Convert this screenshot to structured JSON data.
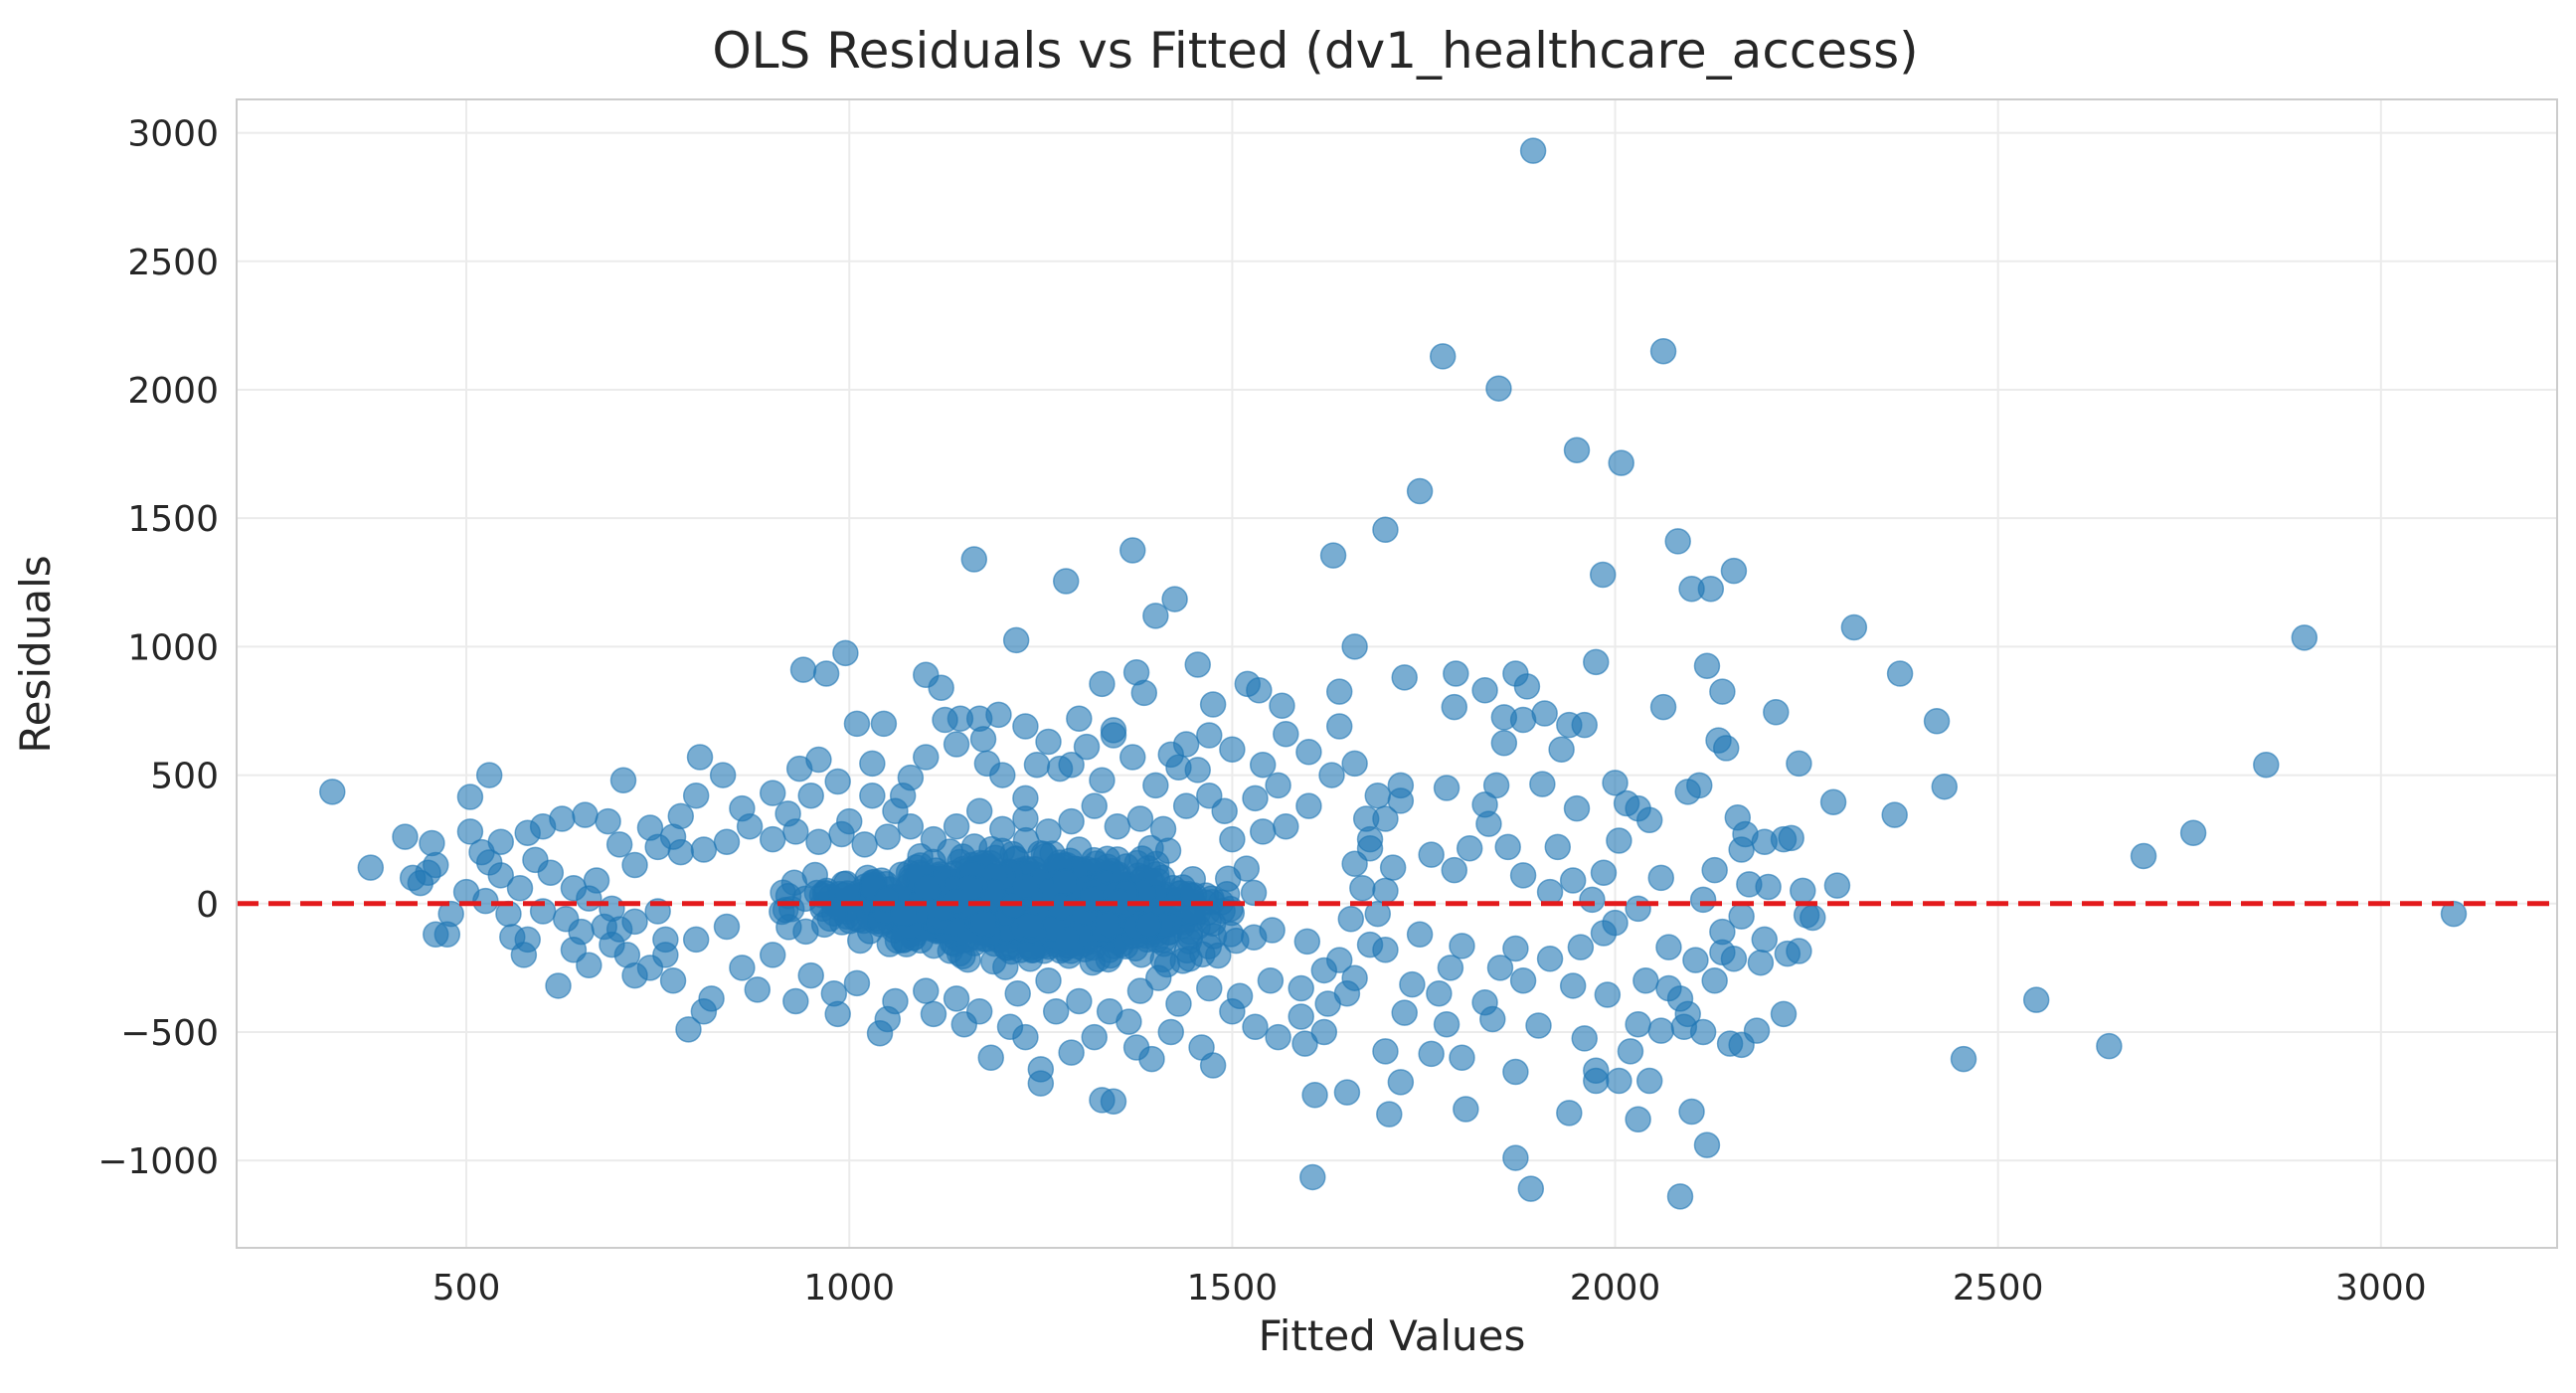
{
  "chart_data": {
    "type": "scatter",
    "title": "OLS Residuals vs Fitted (dv1_healthcare_access)",
    "xlabel": "Fitted Values",
    "ylabel": "Residuals",
    "xlim": [
      200,
      3230
    ],
    "ylim": [
      -1340,
      3130
    ],
    "xticks": [
      500,
      1000,
      1500,
      2000,
      2500,
      3000
    ],
    "xtick_labels": [
      "500",
      "1000",
      "1500",
      "2000",
      "2500",
      "3000"
    ],
    "yticks": [
      -1000,
      -500,
      0,
      500,
      1000,
      1500,
      2000,
      2500,
      3000
    ],
    "ytick_labels": [
      "−1000",
      "−500",
      "0",
      "500",
      "1000",
      "1500",
      "2000",
      "2500",
      "3000"
    ],
    "grid": true,
    "reference_line": {
      "y": 0,
      "style": "dashed",
      "color": "#e31a1c"
    },
    "point_color": "#1f77b4",
    "point_opacity": 0.6,
    "dense_cluster": {
      "x_range": [
        780,
        1680
      ],
      "y_range": [
        -350,
        330
      ],
      "note_count": 1400
    },
    "points": [
      [
        1893,
        2930
      ],
      [
        1775,
        2130
      ],
      [
        2063,
        2150
      ],
      [
        1848,
        2005
      ],
      [
        1950,
        1765
      ],
      [
        2008,
        1715
      ],
      [
        1745,
        1605
      ],
      [
        1700,
        1455
      ],
      [
        2082,
        1410
      ],
      [
        1632,
        1355
      ],
      [
        1163,
        1340
      ],
      [
        1370,
        1375
      ],
      [
        1283,
        1255
      ],
      [
        1984,
        1280
      ],
      [
        2155,
        1295
      ],
      [
        2100,
        1225
      ],
      [
        2125,
        1225
      ],
      [
        1425,
        1185
      ],
      [
        1400,
        1120
      ],
      [
        1218,
        1025
      ],
      [
        995,
        975
      ],
      [
        1660,
        1000
      ],
      [
        2312,
        1075
      ],
      [
        2900,
        1035
      ],
      [
        1455,
        930
      ],
      [
        1640,
        825
      ],
      [
        2372,
        895
      ],
      [
        2120,
        925
      ],
      [
        2140,
        825
      ],
      [
        1830,
        830
      ],
      [
        1870,
        895
      ],
      [
        1885,
        845
      ],
      [
        1940,
        695
      ],
      [
        1960,
        695
      ],
      [
        1792,
        895
      ],
      [
        1725,
        880
      ],
      [
        940,
        910
      ],
      [
        970,
        895
      ],
      [
        1100,
        890
      ],
      [
        1120,
        840
      ],
      [
        1375,
        900
      ],
      [
        1520,
        855
      ],
      [
        1535,
        830
      ],
      [
        1565,
        770
      ],
      [
        1475,
        775
      ],
      [
        1330,
        855
      ],
      [
        1345,
        675
      ],
      [
        1300,
        720
      ],
      [
        2420,
        710
      ],
      [
        2210,
        745
      ],
      [
        2063,
        765
      ],
      [
        1908,
        740
      ],
      [
        1975,
        940
      ],
      [
        1855,
        625
      ],
      [
        2850,
        540
      ],
      [
        2240,
        545
      ],
      [
        2430,
        455
      ],
      [
        2365,
        345
      ],
      [
        2285,
        395
      ],
      [
        2755,
        275
      ],
      [
        2690,
        185
      ],
      [
        2290,
        70
      ],
      [
        3095,
        -40
      ],
      [
        2258,
        -55
      ],
      [
        2225,
        -195
      ],
      [
        2220,
        -430
      ],
      [
        2550,
        -375
      ],
      [
        2645,
        -555
      ],
      [
        2455,
        -605
      ],
      [
        2120,
        -940
      ],
      [
        2085,
        -1140
      ],
      [
        1890,
        -1110
      ],
      [
        1870,
        -990
      ],
      [
        1605,
        -1065
      ],
      [
        1705,
        -820
      ],
      [
        1805,
        -800
      ],
      [
        2100,
        -810
      ],
      [
        2030,
        -840
      ],
      [
        1975,
        -690
      ],
      [
        2005,
        -690
      ],
      [
        2045,
        -690
      ],
      [
        1940,
        -815
      ],
      [
        1720,
        -695
      ],
      [
        1650,
        -735
      ],
      [
        1608,
        -745
      ],
      [
        1330,
        -765
      ],
      [
        1345,
        -770
      ],
      [
        1250,
        -700
      ],
      [
        1250,
        -645
      ],
      [
        1230,
        -520
      ],
      [
        1475,
        -630
      ],
      [
        1595,
        -545
      ],
      [
        1700,
        -575
      ],
      [
        1760,
        -585
      ],
      [
        1870,
        -655
      ],
      [
        1975,
        -650
      ],
      [
        2020,
        -575
      ],
      [
        2150,
        -545
      ],
      [
        2165,
        -550
      ],
      [
        2185,
        -495
      ],
      [
        2060,
        -495
      ],
      [
        2115,
        -500
      ],
      [
        2130,
        -300
      ],
      [
        2155,
        -215
      ],
      [
        2190,
        -230
      ],
      [
        2240,
        -185
      ],
      [
        2140,
        -190
      ],
      [
        2105,
        -220
      ],
      [
        2085,
        -370
      ],
      [
        2070,
        -330
      ],
      [
        2095,
        -430
      ],
      [
        2090,
        -480
      ],
      [
        1990,
        -355
      ],
      [
        1945,
        -320
      ],
      [
        1900,
        -475
      ],
      [
        1830,
        -385
      ],
      [
        1780,
        -470
      ],
      [
        1800,
        -600
      ],
      [
        1840,
        -450
      ],
      [
        1960,
        -525
      ],
      [
        2030,
        -470
      ],
      [
        2040,
        -300
      ],
      [
        2070,
        -170
      ],
      [
        1985,
        -115
      ],
      [
        1915,
        -215
      ],
      [
        1880,
        -300
      ],
      [
        1785,
        -250
      ],
      [
        1770,
        -350
      ],
      [
        1725,
        -425
      ],
      [
        1735,
        -315
      ],
      [
        1700,
        -180
      ],
      [
        1745,
        -120
      ],
      [
        1800,
        -165
      ],
      [
        1850,
        -250
      ],
      [
        1870,
        -175
      ],
      [
        1955,
        -170
      ],
      [
        2000,
        -75
      ],
      [
        2030,
        -20
      ],
      [
        2060,
        100
      ],
      [
        2045,
        325
      ],
      [
        2000,
        470
      ],
      [
        2015,
        390
      ],
      [
        2030,
        370
      ],
      [
        2005,
        245
      ],
      [
        1985,
        120
      ],
      [
        1970,
        15
      ],
      [
        2095,
        435
      ],
      [
        2110,
        460
      ],
      [
        2135,
        635
      ],
      [
        2145,
        605
      ],
      [
        2160,
        335
      ],
      [
        2165,
        210
      ],
      [
        2170,
        270
      ],
      [
        2195,
        240
      ],
      [
        2175,
        75
      ],
      [
        2165,
        -50
      ],
      [
        2200,
        65
      ],
      [
        2220,
        250
      ],
      [
        2130,
        130
      ],
      [
        2115,
        15
      ],
      [
        2140,
        -110
      ],
      [
        2195,
        -140
      ],
      [
        2250,
        -45
      ],
      [
        2245,
        50
      ],
      [
        2230,
        255
      ],
      [
        1950,
        370
      ],
      [
        1925,
        220
      ],
      [
        1945,
        90
      ],
      [
        1915,
        45
      ],
      [
        1880,
        110
      ],
      [
        1860,
        220
      ],
      [
        1835,
        310
      ],
      [
        1830,
        385
      ],
      [
        1845,
        460
      ],
      [
        1810,
        215
      ],
      [
        1790,
        130
      ],
      [
        1760,
        190
      ],
      [
        1720,
        400
      ],
      [
        1720,
        460
      ],
      [
        1780,
        450
      ],
      [
        1790,
        765
      ],
      [
        1855,
        725
      ],
      [
        1880,
        715
      ],
      [
        1930,
        600
      ],
      [
        1905,
        465
      ],
      [
        1690,
        420
      ],
      [
        1675,
        330
      ],
      [
        1680,
        215
      ],
      [
        1660,
        155
      ],
      [
        1670,
        60
      ],
      [
        1655,
        -60
      ],
      [
        1640,
        -220
      ],
      [
        1660,
        -290
      ],
      [
        1625,
        -390
      ],
      [
        1620,
        -500
      ],
      [
        1590,
        -440
      ],
      [
        1560,
        -520
      ],
      [
        1530,
        -480
      ],
      [
        1500,
        -420
      ],
      [
        1460,
        -560
      ],
      [
        1420,
        -500
      ],
      [
        1395,
        -605
      ],
      [
        1375,
        -560
      ],
      [
        1365,
        -460
      ],
      [
        1320,
        -520
      ],
      [
        1290,
        -580
      ],
      [
        1270,
        -420
      ],
      [
        1210,
        -480
      ],
      [
        1185,
        -600
      ],
      [
        1150,
        -470
      ],
      [
        1110,
        -430
      ],
      [
        1040,
        -505
      ],
      [
        1050,
        -450
      ],
      [
        985,
        -430
      ],
      [
        930,
        -380
      ],
      [
        880,
        -335
      ],
      [
        820,
        -370
      ],
      [
        790,
        -490
      ],
      [
        810,
        -420
      ],
      [
        770,
        -300
      ],
      [
        740,
        -250
      ],
      [
        710,
        -200
      ],
      [
        690,
        -160
      ],
      [
        650,
        -110
      ],
      [
        620,
        -320
      ],
      [
        580,
        -140
      ],
      [
        575,
        -200
      ],
      [
        560,
        -130
      ],
      [
        555,
        -40
      ],
      [
        525,
        10
      ],
      [
        500,
        45
      ],
      [
        480,
        -40
      ],
      [
        475,
        -120
      ],
      [
        460,
        -120
      ],
      [
        440,
        80
      ],
      [
        450,
        120
      ],
      [
        460,
        150
      ],
      [
        455,
        235
      ],
      [
        420,
        260
      ],
      [
        430,
        100
      ],
      [
        375,
        140
      ],
      [
        325,
        435
      ],
      [
        505,
        415
      ],
      [
        530,
        500
      ],
      [
        505,
        280
      ],
      [
        520,
        200
      ],
      [
        545,
        240
      ],
      [
        580,
        275
      ],
      [
        600,
        300
      ],
      [
        625,
        330
      ],
      [
        655,
        345
      ],
      [
        685,
        320
      ],
      [
        705,
        480
      ],
      [
        740,
        295
      ],
      [
        770,
        260
      ],
      [
        780,
        340
      ],
      [
        800,
        420
      ],
      [
        805,
        570
      ],
      [
        835,
        500
      ],
      [
        860,
        370
      ],
      [
        900,
        430
      ],
      [
        935,
        525
      ],
      [
        960,
        560
      ],
      [
        985,
        475
      ],
      [
        1010,
        700
      ],
      [
        1030,
        545
      ],
      [
        1045,
        700
      ],
      [
        1070,
        420
      ],
      [
        1100,
        570
      ],
      [
        1125,
        715
      ],
      [
        1145,
        720
      ],
      [
        1170,
        720
      ],
      [
        1195,
        735
      ],
      [
        1175,
        640
      ],
      [
        1200,
        500
      ],
      [
        1230,
        690
      ],
      [
        1245,
        540
      ],
      [
        1275,
        525
      ],
      [
        1290,
        540
      ],
      [
        1310,
        610
      ],
      [
        1345,
        655
      ],
      [
        1385,
        820
      ],
      [
        1400,
        460
      ],
      [
        1430,
        530
      ],
      [
        1440,
        620
      ],
      [
        1470,
        655
      ],
      [
        1500,
        600
      ],
      [
        1540,
        540
      ],
      [
        1570,
        660
      ],
      [
        1600,
        590
      ],
      [
        1630,
        500
      ],
      [
        1640,
        690
      ],
      [
        1660,
        545
      ],
      [
        1560,
        460
      ],
      [
        1530,
        410
      ],
      [
        1490,
        360
      ],
      [
        1455,
        520
      ],
      [
        1420,
        580
      ],
      [
        1370,
        570
      ],
      [
        1330,
        480
      ],
      [
        1260,
        630
      ],
      [
        1230,
        410
      ],
      [
        1180,
        545
      ],
      [
        1140,
        620
      ],
      [
        1080,
        490
      ],
      [
        1060,
        360
      ],
      [
        1030,
        420
      ],
      [
        1000,
        320
      ],
      [
        950,
        420
      ],
      [
        920,
        350
      ],
      [
        870,
        300
      ],
      [
        840,
        240
      ],
      [
        810,
        210
      ],
      [
        780,
        200
      ],
      [
        750,
        220
      ],
      [
        720,
        150
      ],
      [
        700,
        230
      ],
      [
        670,
        90
      ],
      [
        640,
        60
      ],
      [
        610,
        120
      ],
      [
        590,
        170
      ],
      [
        570,
        60
      ],
      [
        545,
        110
      ],
      [
        530,
        160
      ],
      [
        600,
        -30
      ],
      [
        630,
        -60
      ],
      [
        660,
        20
      ],
      [
        690,
        -20
      ],
      [
        720,
        -70
      ],
      [
        750,
        -30
      ],
      [
        760,
        -140
      ],
      [
        700,
        -100
      ],
      [
        680,
        -90
      ],
      [
        660,
        -240
      ],
      [
        640,
        -180
      ],
      [
        720,
        -280
      ],
      [
        760,
        -200
      ],
      [
        800,
        -140
      ],
      [
        840,
        -90
      ],
      [
        860,
        -250
      ],
      [
        900,
        -200
      ],
      [
        950,
        -280
      ],
      [
        980,
        -350
      ],
      [
        1010,
        -310
      ],
      [
        1060,
        -380
      ],
      [
        1100,
        -340
      ],
      [
        1140,
        -370
      ],
      [
        1170,
        -420
      ],
      [
        1220,
        -350
      ],
      [
        1260,
        -300
      ],
      [
        1300,
        -380
      ],
      [
        1340,
        -420
      ],
      [
        1380,
        -340
      ],
      [
        1430,
        -390
      ],
      [
        1470,
        -330
      ],
      [
        1510,
        -360
      ],
      [
        1550,
        -300
      ],
      [
        1590,
        -330
      ],
      [
        1620,
        -260
      ],
      [
        1650,
        -350
      ],
      [
        1680,
        -160
      ],
      [
        1690,
        -40
      ],
      [
        1700,
        50
      ],
      [
        1710,
        140
      ],
      [
        1680,
        250
      ],
      [
        1700,
        330
      ],
      [
        1600,
        380
      ],
      [
        1570,
        300
      ],
      [
        1540,
        280
      ],
      [
        1500,
        250
      ],
      [
        1470,
        420
      ],
      [
        1440,
        380
      ],
      [
        1410,
        290
      ],
      [
        1380,
        330
      ],
      [
        1350,
        300
      ],
      [
        1320,
        380
      ],
      [
        1290,
        320
      ],
      [
        1260,
        280
      ],
      [
        1230,
        330
      ],
      [
        1200,
        290
      ],
      [
        1170,
        360
      ],
      [
        1140,
        300
      ],
      [
        1110,
        250
      ],
      [
        1080,
        300
      ],
      [
        1050,
        260
      ],
      [
        1020,
        230
      ],
      [
        990,
        270
      ],
      [
        960,
        240
      ],
      [
        930,
        280
      ],
      [
        900,
        250
      ]
    ]
  }
}
